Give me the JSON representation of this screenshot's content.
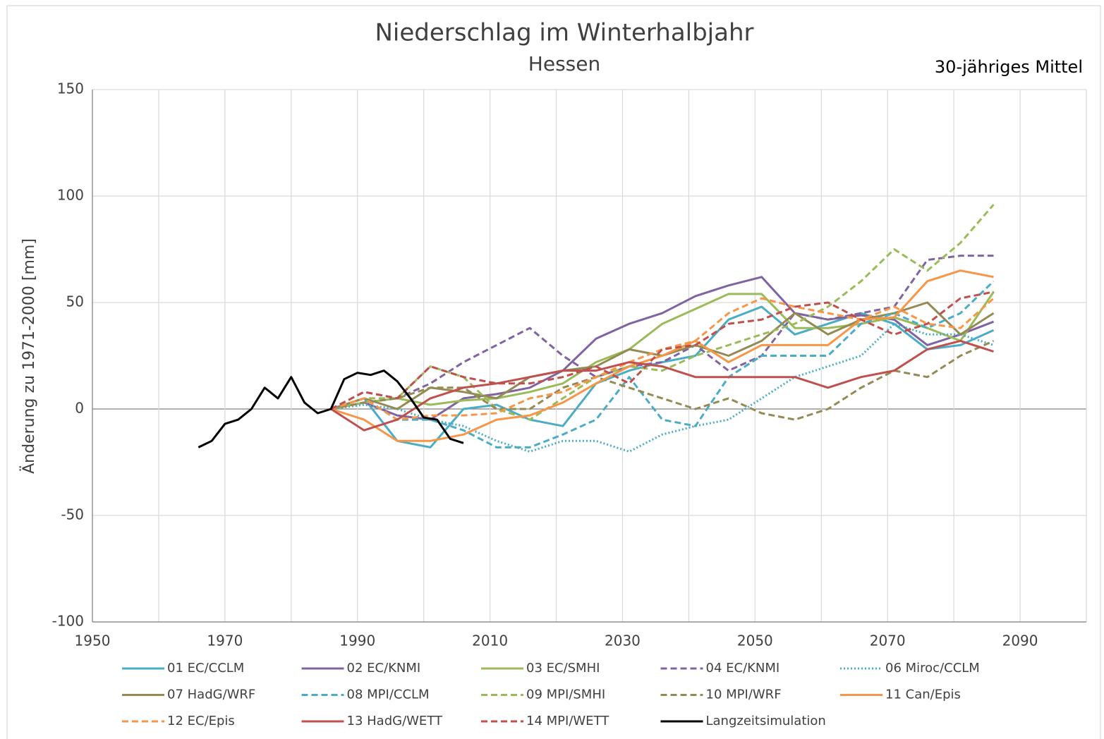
{
  "chart_data": {
    "type": "line",
    "title": "Niederschlag im Winterhalbjahr",
    "subtitle": "Hessen",
    "annotation": "30-jähriges Mittel",
    "ylabel": "Änderung zu 1971-2000 [mm]",
    "xlim": [
      1950,
      2100
    ],
    "xticks": [
      1950,
      1970,
      1990,
      2010,
      2030,
      2050,
      2070,
      2090
    ],
    "xminor": [
      1960,
      1980,
      2000,
      2020,
      2040,
      2060,
      2080,
      2100
    ],
    "ylim": [
      -100,
      150
    ],
    "yticks": [
      -100,
      -50,
      0,
      50,
      100,
      150
    ],
    "grid": true,
    "legend": "bottom",
    "x": [
      1986,
      1991,
      1996,
      2001,
      2006,
      2011,
      2016,
      2021,
      2026,
      2031,
      2036,
      2041,
      2046,
      2051,
      2056,
      2061,
      2066,
      2071,
      2076,
      2081,
      2086
    ],
    "series": [
      {
        "name": "01 EC/CCLM",
        "color": "#4bacc6",
        "dash": "solid",
        "values": [
          0,
          5,
          -15,
          -18,
          0,
          2,
          -5,
          -8,
          12,
          18,
          22,
          25,
          42,
          48,
          35,
          40,
          45,
          40,
          28,
          30,
          37
        ]
      },
      {
        "name": "02 EC/KNMI",
        "color": "#8064a2",
        "dash": "solid",
        "values": [
          0,
          3,
          -3,
          -5,
          5,
          7,
          10,
          18,
          33,
          40,
          45,
          53,
          58,
          62,
          45,
          42,
          44,
          42,
          30,
          35,
          41
        ]
      },
      {
        "name": "03 EC/SMHI",
        "color": "#9bbb59",
        "dash": "solid",
        "values": [
          0,
          3,
          5,
          2,
          4,
          5,
          8,
          12,
          22,
          28,
          40,
          47,
          54,
          54,
          38,
          38,
          40,
          43,
          38,
          32,
          55
        ]
      },
      {
        "name": "04 EC/KNMI",
        "color": "#8064a2",
        "dash": "dashed",
        "values": [
          0,
          8,
          5,
          12,
          22,
          30,
          38,
          25,
          15,
          20,
          22,
          30,
          18,
          25,
          45,
          42,
          45,
          48,
          70,
          72,
          72
        ]
      },
      {
        "name": "06 Miroc/CCLM",
        "color": "#4bacc6",
        "dash": "dotted",
        "values": [
          0,
          2,
          0,
          -5,
          -8,
          -15,
          -20,
          -15,
          -15,
          -20,
          -12,
          -8,
          -5,
          5,
          15,
          20,
          25,
          40,
          35,
          35,
          30
        ]
      },
      {
        "name": "07 HadG/WRF",
        "color": "#948a54",
        "dash": "solid",
        "values": [
          0,
          5,
          0,
          10,
          8,
          5,
          15,
          18,
          20,
          28,
          25,
          30,
          25,
          32,
          45,
          35,
          42,
          45,
          50,
          35,
          45
        ]
      },
      {
        "name": "08 MPI/CCLM",
        "color": "#4bacc6",
        "dash": "dashed",
        "values": [
          0,
          5,
          -5,
          -5,
          -10,
          -18,
          -18,
          -12,
          -5,
          15,
          -5,
          -8,
          15,
          25,
          25,
          25,
          40,
          45,
          38,
          45,
          60
        ]
      },
      {
        "name": "09 MPI/SMHI",
        "color": "#9bbb59",
        "dash": "dashed",
        "values": [
          0,
          5,
          5,
          20,
          15,
          0,
          -5,
          5,
          15,
          20,
          18,
          25,
          30,
          35,
          40,
          48,
          60,
          75,
          65,
          78,
          96
        ]
      },
      {
        "name": "10 MPI/WRF",
        "color": "#948a54",
        "dash": "dashed",
        "values": [
          0,
          3,
          5,
          10,
          10,
          0,
          0,
          10,
          15,
          10,
          5,
          0,
          5,
          -2,
          -5,
          0,
          10,
          18,
          15,
          25,
          32
        ]
      },
      {
        "name": "11 Can/Epis",
        "color": "#f79646",
        "dash": "solid",
        "values": [
          0,
          -5,
          -15,
          -15,
          -12,
          -5,
          -3,
          3,
          12,
          20,
          25,
          32,
          22,
          30,
          30,
          30,
          42,
          43,
          60,
          65,
          62
        ]
      },
      {
        "name": "12 EC/Epis",
        "color": "#f79646",
        "dash": "dashed",
        "values": [
          0,
          5,
          -5,
          -3,
          -3,
          -2,
          5,
          8,
          15,
          22,
          28,
          32,
          45,
          52,
          48,
          45,
          42,
          48,
          40,
          38,
          52
        ]
      },
      {
        "name": "13 HadG/WETT",
        "color": "#c0504d",
        "dash": "solid",
        "values": [
          0,
          -10,
          -5,
          5,
          10,
          12,
          15,
          18,
          18,
          22,
          20,
          15,
          15,
          15,
          15,
          10,
          15,
          18,
          28,
          32,
          27
        ]
      },
      {
        "name": "14 MPI/WETT",
        "color": "#c0504d",
        "dash": "dashed",
        "values": [
          0,
          8,
          5,
          20,
          15,
          12,
          12,
          15,
          20,
          12,
          28,
          30,
          40,
          42,
          48,
          50,
          42,
          35,
          40,
          52,
          55
        ]
      },
      {
        "name": "Langzeitsimulation",
        "color": "#000000",
        "dash": "solid",
        "x": [
          1966,
          1968,
          1970,
          1972,
          1974,
          1976,
          1978,
          1980,
          1982,
          1984,
          1986,
          1988,
          1990,
          1992,
          1994,
          1996,
          1998,
          2000,
          2002,
          2004,
          2006
        ],
        "values": [
          -18,
          -15,
          -7,
          -5,
          0,
          10,
          5,
          15,
          3,
          -2,
          0,
          14,
          17,
          16,
          18,
          13,
          5,
          -4,
          -5,
          -14,
          -16
        ]
      }
    ]
  }
}
